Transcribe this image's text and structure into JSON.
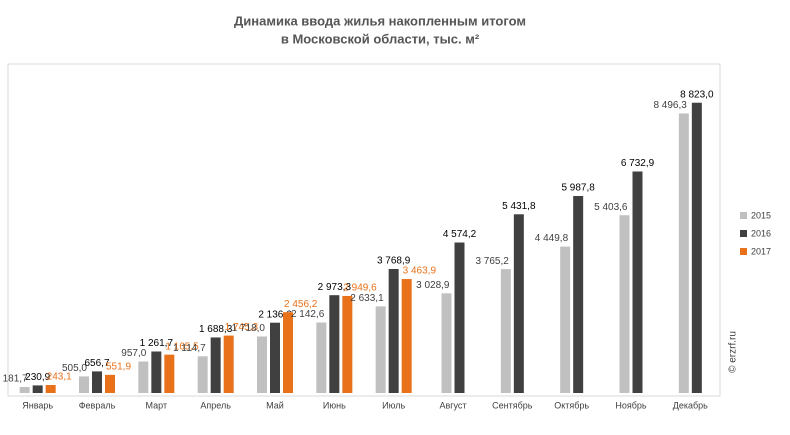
{
  "chart_data": {
    "type": "bar",
    "title": [
      "Динамика ввода жилья накопленным итогом",
      "в Московской области, тыс. м²"
    ],
    "watermark": "© erzrf.ru",
    "categories": [
      "Январь",
      "Февраль",
      "Март",
      "Апрель",
      "Май",
      "Июнь",
      "Июль",
      "Август",
      "Сентябрь",
      "Октябрь",
      "Ноябрь",
      "Декабрь"
    ],
    "ylim": [
      0,
      10000
    ],
    "legend": "right",
    "series": [
      {
        "name": "2015",
        "color": "#c0c0c0",
        "label_color": "#404040",
        "values": [
          181.7,
          505.0,
          957.0,
          1114.7,
          1718.0,
          2142.6,
          2633.1,
          3028.9,
          3765.2,
          4449.8,
          5403.6,
          8496.3
        ],
        "value_labels": [
          "181,7",
          "505,0",
          "957,0",
          "1 114,7",
          "1 718,0",
          "2 142,6",
          "2 633,1",
          "3 028,9",
          "3 765,2",
          "4 449,8",
          "5 403,6",
          "8 496,3"
        ]
      },
      {
        "name": "2016",
        "color": "#404040",
        "label_color": "#000000",
        "values": [
          230.9,
          656.7,
          1261.7,
          1688.3,
          2136.6,
          2973.3,
          3768.9,
          4574.2,
          5431.8,
          5987.8,
          6732.9,
          8823.0
        ],
        "value_labels": [
          "230,9",
          "656,7",
          "1 261,7",
          "1 688,3",
          "2 136,6",
          "2 973,3",
          "3 768,9",
          "4 574,2",
          "5 431,8",
          "5 987,8",
          "6 732,9",
          "8 823,0"
        ]
      },
      {
        "name": "2017",
        "color": "#e8711a",
        "label_color": "#e8711a",
        "values": [
          243.1,
          551.9,
          1165.5,
          1745.3,
          2456.2,
          2949.6,
          3463.9,
          null,
          null,
          null,
          null,
          null
        ],
        "value_labels": [
          "243,1",
          "551,9",
          "1 165,5",
          "1 745,3",
          "2 456,2",
          "2 949,6",
          "3 463,9",
          null,
          null,
          null,
          null,
          null
        ]
      }
    ]
  }
}
